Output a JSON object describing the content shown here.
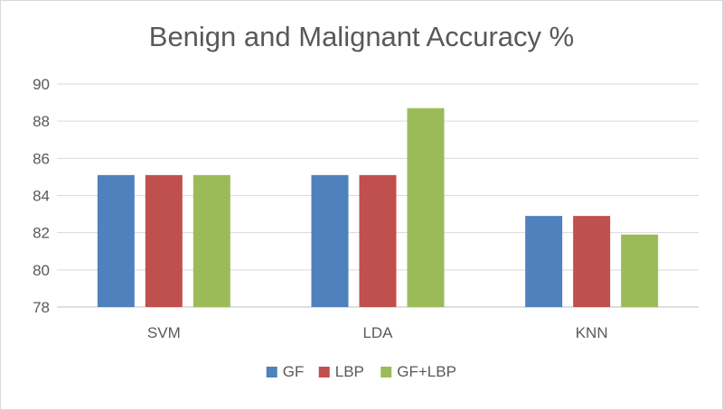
{
  "chart_data": {
    "type": "bar",
    "title": "Benign and Malignant Accuracy %",
    "categories": [
      "SVM",
      "LDA",
      "KNN"
    ],
    "series": [
      {
        "name": "GF",
        "color": "#4f81bd",
        "values": [
          85.1,
          85.1,
          82.9
        ]
      },
      {
        "name": "LBP",
        "color": "#c0504d",
        "values": [
          85.1,
          85.1,
          82.9
        ]
      },
      {
        "name": "GF+LBP",
        "color": "#9bbb59",
        "values": [
          85.1,
          88.7,
          81.9
        ]
      }
    ],
    "ylim": [
      78,
      90
    ],
    "yticks": [
      78,
      80,
      82,
      84,
      86,
      88,
      90
    ],
    "grid": true,
    "legend_position": "bottom"
  }
}
